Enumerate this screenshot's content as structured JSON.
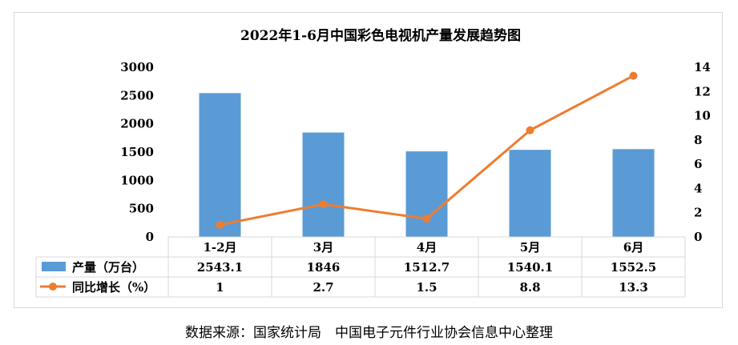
{
  "chart_data": {
    "type": "bar",
    "title": "2022年1-6月中国彩色电视机产量发展趋势图",
    "categories": [
      "1-2月",
      "3月",
      "4月",
      "5月",
      "6月"
    ],
    "series": [
      {
        "name": "产量（万台）",
        "type": "bar",
        "axis": "left",
        "color": "#5b9bd5",
        "values": [
          2543.1,
          1846,
          1512.7,
          1540.1,
          1552.5
        ],
        "labels": [
          "2543.1",
          "1846",
          "1512.7",
          "1540.1",
          "1552.5"
        ]
      },
      {
        "name": "同比增长（%）",
        "type": "line",
        "axis": "right",
        "color": "#ed7d31",
        "values": [
          1,
          2.7,
          1.5,
          8.8,
          13.3
        ],
        "labels": [
          "1",
          "2.7",
          "1.5",
          "8.8",
          "13.3"
        ]
      }
    ],
    "y_left": {
      "lim": [
        0,
        3000
      ],
      "ticks": [
        "0",
        "500",
        "1000",
        "1500",
        "2000",
        "2500",
        "3000"
      ]
    },
    "y_right": {
      "lim": [
        0,
        14
      ],
      "ticks": [
        "0",
        "2",
        "4",
        "6",
        "8",
        "10",
        "12",
        "14"
      ]
    },
    "grid": false,
    "legend": "data-table-left"
  },
  "footer": {
    "source": "数据来源：国家统计局　中国电子元件行业协会信息中心整理"
  }
}
